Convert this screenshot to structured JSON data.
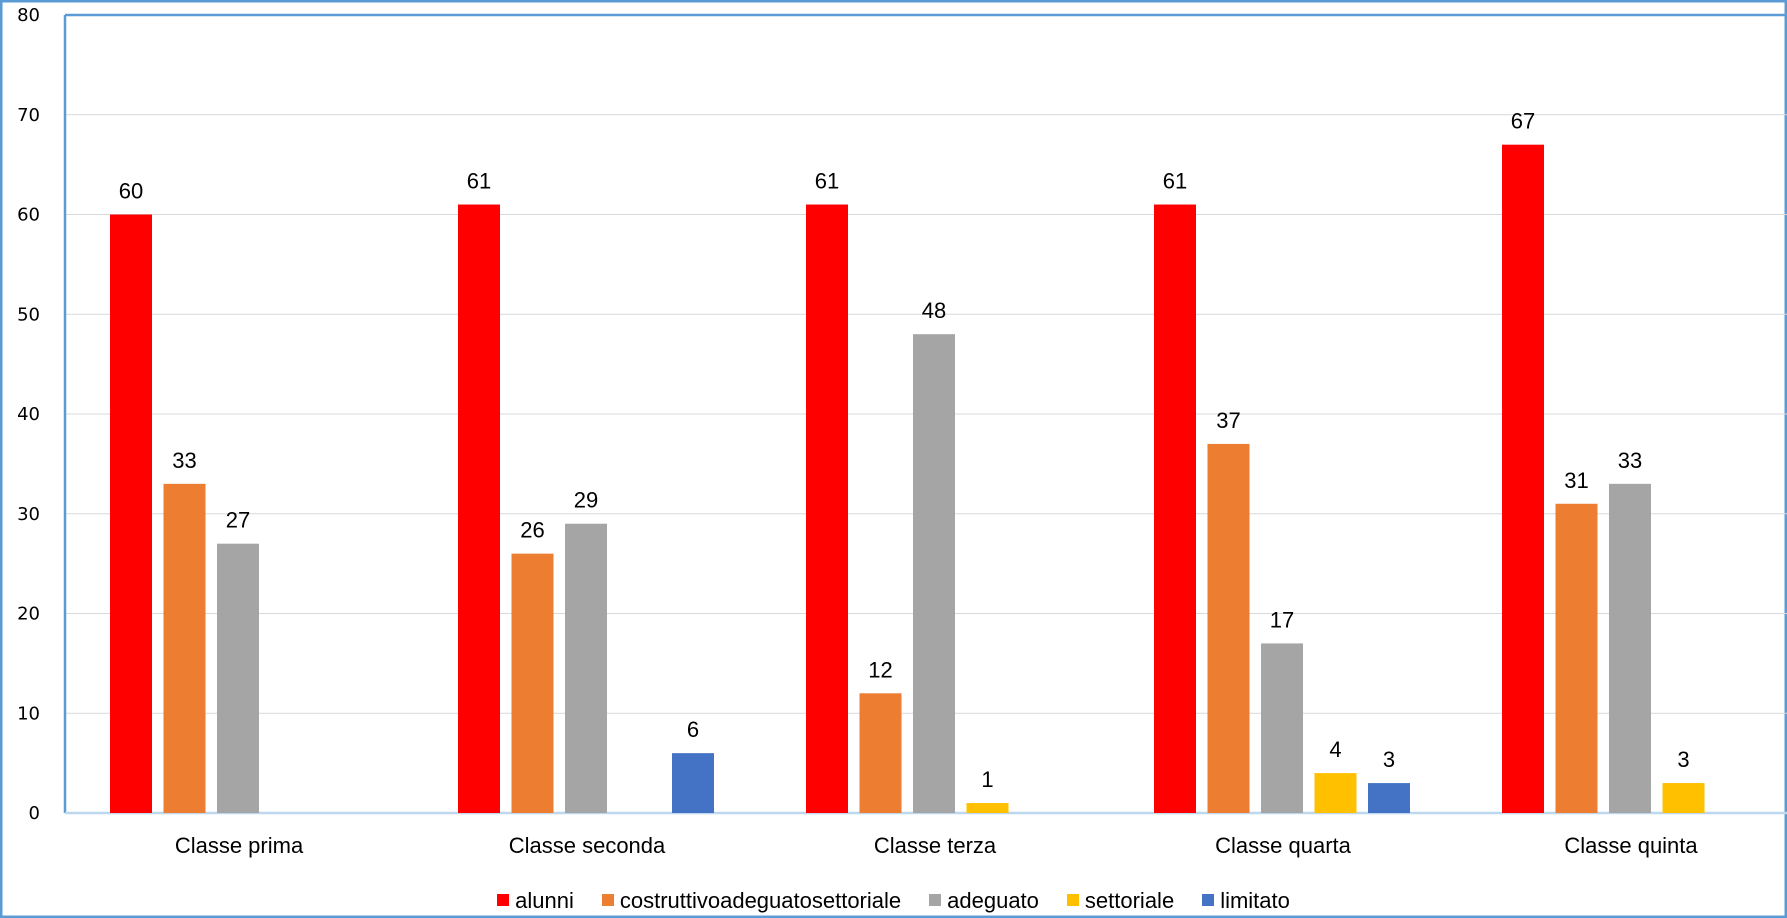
{
  "chart_data": {
    "type": "bar",
    "categories": [
      "Classe prima",
      "Classe seconda",
      "Classe terza",
      "Classe quarta",
      "Classe quinta"
    ],
    "series": [
      {
        "name": "alunni",
        "color": "#ff0000",
        "values": [
          60,
          61,
          61,
          61,
          67
        ]
      },
      {
        "name": "costruttivoadeguatosettoriale",
        "color": "#ed7d31",
        "values": [
          33,
          26,
          12,
          37,
          31
        ]
      },
      {
        "name": "adeguato",
        "color": "#a5a5a5",
        "values": [
          27,
          29,
          48,
          17,
          33
        ]
      },
      {
        "name": "settoriale",
        "color": "#ffc000",
        "values": [
          null,
          null,
          1,
          4,
          3
        ]
      },
      {
        "name": "limitato",
        "color": "#4472c4",
        "values": [
          null,
          6,
          null,
          3,
          null
        ]
      }
    ],
    "ylim": [
      0,
      80
    ],
    "yticks": [
      0,
      10,
      20,
      30,
      40,
      50,
      60,
      70,
      80
    ],
    "title": "",
    "xlabel": "",
    "ylabel": "",
    "grid": true,
    "legend_position": "bottom",
    "data_labels": true,
    "frame_color": "#5b9bd5"
  }
}
